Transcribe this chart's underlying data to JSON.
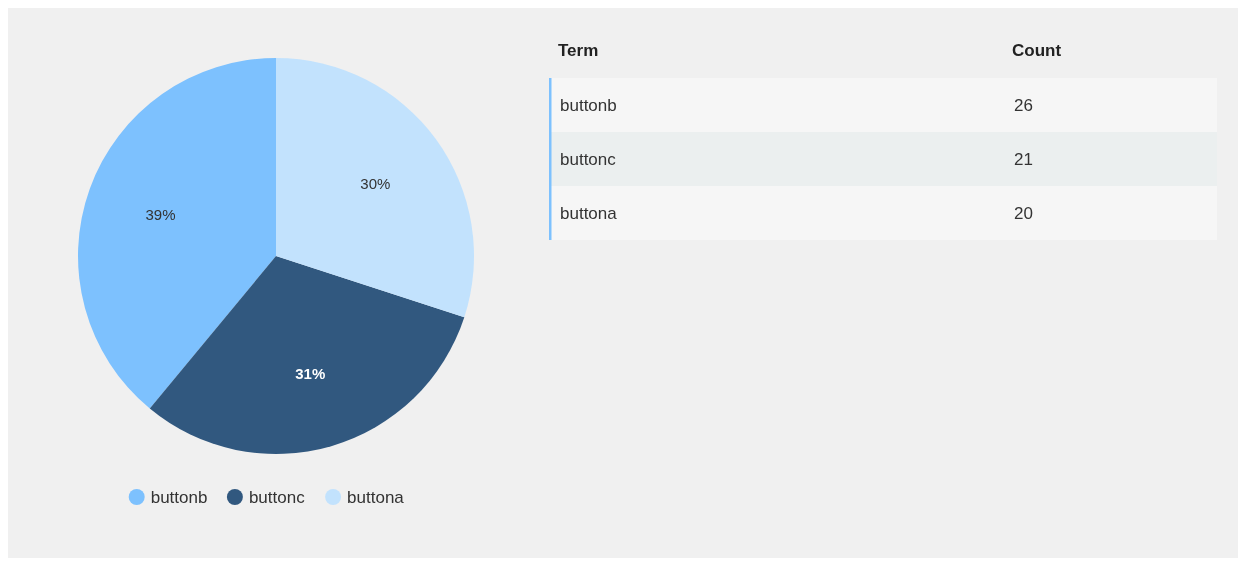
{
  "chart_data": [
    {
      "type": "pie",
      "categories": [
        "buttonb",
        "buttonc",
        "buttona"
      ],
      "values": [
        39,
        31,
        30
      ],
      "colors": [
        "#7dc1fe",
        "#31587f",
        "#c2e2fd"
      ],
      "value_labels": [
        "39%",
        "31%",
        "30%"
      ],
      "legend": "bottom"
    },
    {
      "type": "other",
      "categories": [
        "buttonb",
        "buttonc",
        "buttona"
      ],
      "values": [
        26,
        21,
        20
      ],
      "data_labels": true,
      "annotations": [
        "Term",
        "Count"
      ]
    }
  ]
}
